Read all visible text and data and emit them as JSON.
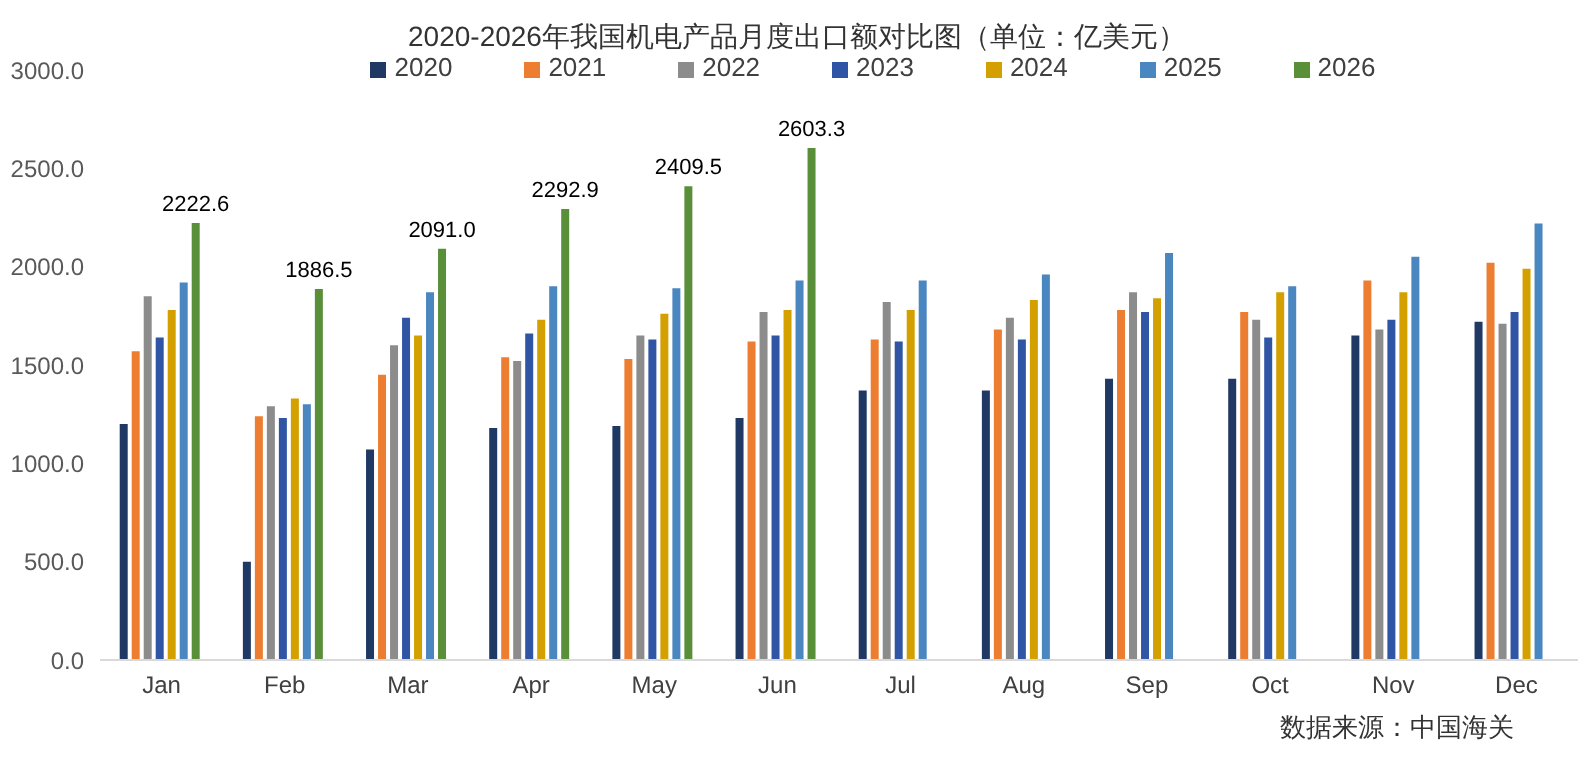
{
  "chart_data": {
    "type": "bar",
    "title": "2020-2026年我国机电产品月度出口额对比图（单位：亿美元）",
    "categories": [
      "Jan",
      "Feb",
      "Mar",
      "Apr",
      "May",
      "Jun",
      "Jul",
      "Aug",
      "Sep",
      "Oct",
      "Nov",
      "Dec"
    ],
    "series": [
      {
        "name": "2020",
        "color": "#203864",
        "values": [
          1200,
          500,
          1070,
          1180,
          1190,
          1230,
          1370,
          1370,
          1430,
          1430,
          1650,
          1720
        ]
      },
      {
        "name": "2021",
        "color": "#ed7d31",
        "values": [
          1570,
          1240,
          1450,
          1540,
          1530,
          1620,
          1630,
          1680,
          1780,
          1770,
          1930,
          2020
        ]
      },
      {
        "name": "2022",
        "color": "#8c8c8c",
        "values": [
          1850,
          1290,
          1600,
          1520,
          1650,
          1770,
          1820,
          1740,
          1870,
          1730,
          1680,
          1710
        ]
      },
      {
        "name": "2023",
        "color": "#2f55a4",
        "values": [
          1640,
          1230,
          1740,
          1660,
          1630,
          1650,
          1620,
          1630,
          1770,
          1640,
          1730,
          1770
        ]
      },
      {
        "name": "2024",
        "color": "#d4a000",
        "values": [
          1780,
          1330,
          1650,
          1730,
          1760,
          1780,
          1780,
          1830,
          1840,
          1870,
          1870,
          1990
        ]
      },
      {
        "name": "2025",
        "color": "#4a86c0",
        "values": [
          1920,
          1300,
          1870,
          1900,
          1890,
          1930,
          1930,
          1960,
          2070,
          1900,
          2050,
          2220
        ]
      },
      {
        "name": "2026",
        "color": "#5a8f3a",
        "values": [
          2222.6,
          1886.5,
          2091.0,
          2292.9,
          2409.5,
          2603.3,
          null,
          null,
          null,
          null,
          null,
          null
        ],
        "value_labels": [
          "2222.6",
          "1886.5",
          "2091.0",
          "2292.9",
          "2409.5",
          "2603.3",
          null,
          null,
          null,
          null,
          null,
          null
        ]
      }
    ],
    "ylim": [
      0,
      3000
    ],
    "yticks": [
      {
        "value": 0,
        "label": "0.0"
      },
      {
        "value": 500,
        "label": "500.0"
      },
      {
        "value": 1000,
        "label": "1000.0"
      },
      {
        "value": 1500,
        "label": "1500.0"
      },
      {
        "value": 2000,
        "label": "2000.0"
      },
      {
        "value": 2500,
        "label": "2500.0"
      },
      {
        "value": 3000,
        "label": "3000.0"
      }
    ],
    "grid": false,
    "legend": "top",
    "annotations": [
      "数据来源：中国海关"
    ]
  }
}
